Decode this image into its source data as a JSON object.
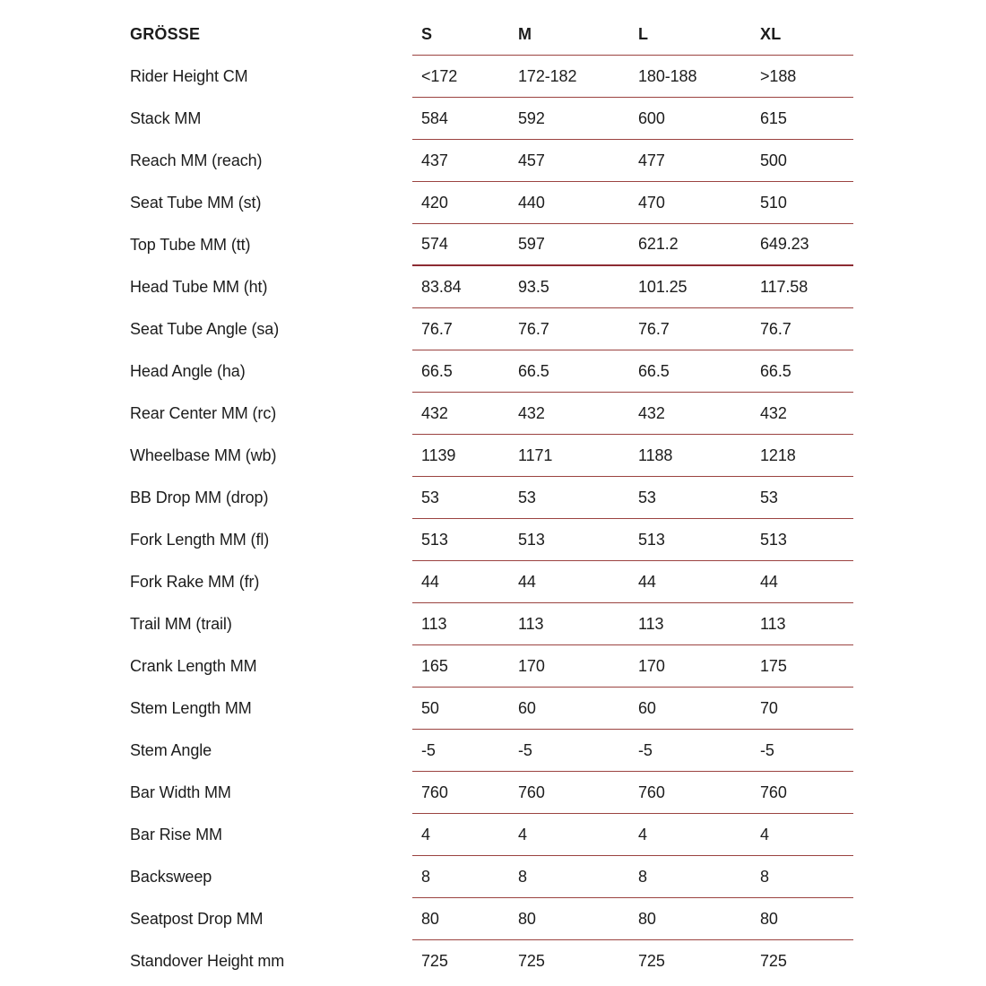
{
  "table": {
    "header": {
      "label": "GRÖSSE",
      "columns": [
        "S",
        "M",
        "L",
        "XL"
      ]
    },
    "rows": [
      {
        "label": "Rider Height CM",
        "values": [
          "<172",
          "172-182",
          "180-188",
          ">188"
        ]
      },
      {
        "label": "Stack MM",
        "values": [
          "584",
          "592",
          "600",
          "615"
        ]
      },
      {
        "label": "Reach MM (reach)",
        "values": [
          "437",
          "457",
          "477",
          "500"
        ]
      },
      {
        "label": "Seat Tube MM (st)",
        "values": [
          "420",
          "440",
          "470",
          "510"
        ]
      },
      {
        "label": "Top Tube MM (tt)",
        "values": [
          "574",
          "597",
          "621.2",
          "649.23"
        ],
        "thick_divider": true
      },
      {
        "label": "Head Tube MM (ht)",
        "values": [
          "83.84",
          "93.5",
          "101.25",
          "117.58"
        ]
      },
      {
        "label": "Seat Tube Angle (sa)",
        "values": [
          "76.7",
          "76.7",
          "76.7",
          "76.7"
        ]
      },
      {
        "label": "Head Angle (ha)",
        "values": [
          "66.5",
          "66.5",
          "66.5",
          "66.5"
        ]
      },
      {
        "label": "Rear Center MM (rc)",
        "values": [
          "432",
          "432",
          "432",
          "432"
        ]
      },
      {
        "label": "Wheelbase MM (wb)",
        "values": [
          "1139",
          "1171",
          "1188",
          "1218"
        ]
      },
      {
        "label": "BB Drop MM (drop)",
        "values": [
          "53",
          "53",
          "53",
          "53"
        ]
      },
      {
        "label": "Fork Length MM (fl)",
        "values": [
          "513",
          "513",
          "513",
          "513"
        ]
      },
      {
        "label": "Fork Rake MM (fr)",
        "values": [
          "44",
          "44",
          "44",
          "44"
        ]
      },
      {
        "label": "Trail MM (trail)",
        "values": [
          "113",
          "113",
          "113",
          "113"
        ]
      },
      {
        "label": "Crank Length MM",
        "values": [
          "165",
          "170",
          "170",
          "175"
        ]
      },
      {
        "label": "Stem Length MM",
        "values": [
          "50",
          "60",
          "60",
          "70"
        ]
      },
      {
        "label": "Stem Angle",
        "values": [
          "-5",
          "-5",
          "-5",
          "-5"
        ]
      },
      {
        "label": "Bar Width MM",
        "values": [
          "760",
          "760",
          "760",
          "760"
        ]
      },
      {
        "label": "Bar Rise MM",
        "values": [
          "4",
          "4",
          "4",
          "4"
        ]
      },
      {
        "label": "Backsweep",
        "values": [
          "8",
          "8",
          "8",
          "8"
        ]
      },
      {
        "label": "Seatpost Drop MM",
        "values": [
          "80",
          "80",
          "80",
          "80"
        ]
      },
      {
        "label": "Standover Height mm",
        "values": [
          "725",
          "725",
          "725",
          "725"
        ]
      }
    ],
    "colors": {
      "background": "#ffffff",
      "text": "#1c1c1c",
      "divider": "#9b4340",
      "divider_thick": "#8c2b33"
    }
  }
}
